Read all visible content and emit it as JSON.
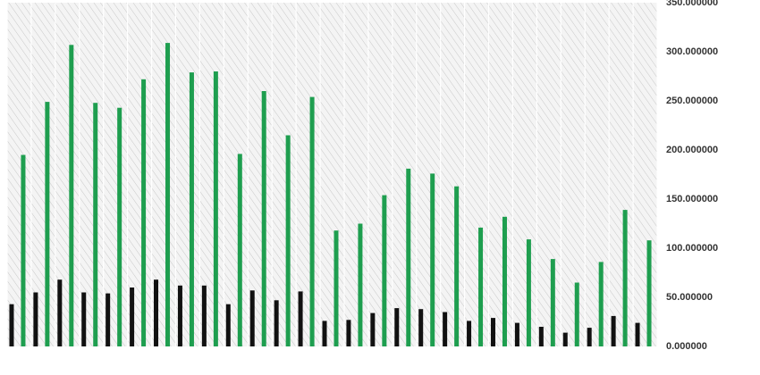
{
  "chart_data": {
    "type": "bar",
    "categories": [
      null,
      null,
      null,
      null,
      null,
      null,
      null,
      null,
      null,
      null,
      null,
      null,
      null,
      null,
      null,
      null,
      null,
      null,
      null,
      null,
      null,
      null,
      null,
      null,
      null,
      null,
      null
    ],
    "series": [
      {
        "color": "#111111",
        "values": [
          43,
          55,
          68,
          55,
          54,
          60,
          68,
          62,
          62,
          43,
          57,
          47,
          56,
          26,
          27,
          34,
          39,
          38,
          35,
          26,
          29,
          24,
          20,
          14,
          19,
          31,
          24
        ]
      },
      {
        "color": "#1e9e4f",
        "values": [
          195,
          249,
          307,
          248,
          243,
          272,
          309,
          279,
          280,
          196,
          260,
          215,
          254,
          118,
          125,
          154,
          181,
          176,
          163,
          121,
          132,
          109,
          89,
          65,
          86,
          139,
          108
        ]
      }
    ],
    "ylim": [
      0,
      350
    ],
    "yticks": [
      {
        "value": 0,
        "label": "0.000000"
      },
      {
        "value": 50,
        "label": "50.000000"
      },
      {
        "value": 100,
        "label": "100.000000"
      },
      {
        "value": 150,
        "label": "150.000000"
      },
      {
        "value": 200,
        "label": "200.000000"
      },
      {
        "value": 250,
        "label": "250.000000"
      },
      {
        "value": 300,
        "label": "300.000000"
      },
      {
        "value": 350,
        "label": "350.000000"
      }
    ],
    "grid": true
  }
}
